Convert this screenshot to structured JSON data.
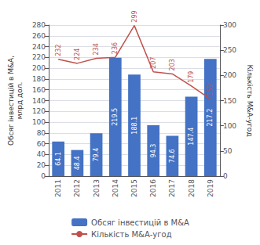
{
  "chart_data": {
    "type": "bar",
    "categories": [
      "2011",
      "2012",
      "2013",
      "2014",
      "2015",
      "2016",
      "2017",
      "2018",
      "2019"
    ],
    "series": [
      {
        "name": "Обсяг інвестицій в М&А",
        "type": "bar",
        "color": "#4472C4",
        "values": [
          64.1,
          48.4,
          79.4,
          219.5,
          188.1,
          94.3,
          74.6,
          147.4,
          217.2
        ],
        "data_labels": true
      },
      {
        "name": "Кількість М&А-угод",
        "type": "line",
        "color": "#C0504D",
        "axis": "y2",
        "values": [
          232,
          224,
          234,
          236,
          299,
          207,
          203,
          179,
          153
        ],
        "data_labels": true
      }
    ],
    "ylabel": "Обсяг інвестицій в М&А,\nмлрд дол.",
    "y2label": "Кількість М&А-угод",
    "ylim": [
      0,
      280
    ],
    "yticks": [
      0,
      20,
      40,
      60,
      80,
      100,
      120,
      140,
      160,
      180,
      200,
      220,
      240,
      260,
      280
    ],
    "y2lim": [
      0,
      300
    ],
    "y2ticks": [
      0,
      50,
      100,
      150,
      200,
      250,
      300
    ],
    "grid": true,
    "legend": "bottom"
  }
}
